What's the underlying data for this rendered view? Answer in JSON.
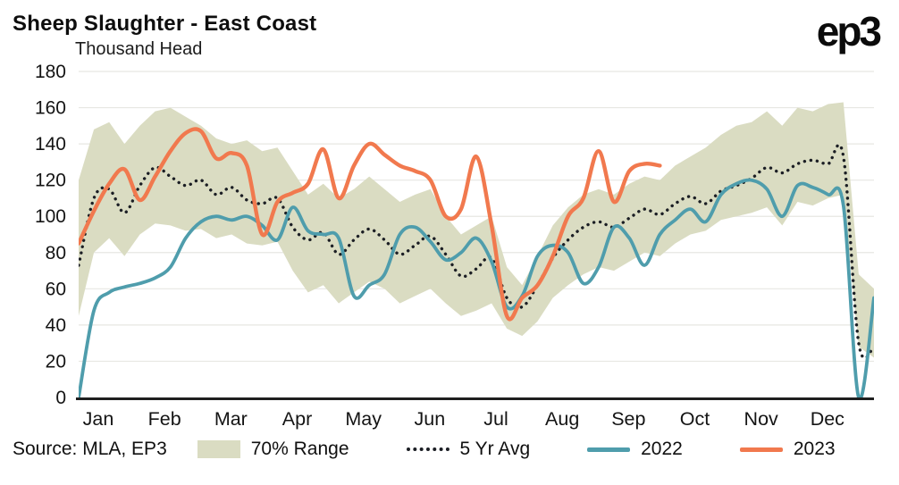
{
  "header": {
    "title": "Sheep Slaughter - East Coast",
    "subtitle": "Thousand Head",
    "logo": "ep3"
  },
  "footer": {
    "source": "Source: MLA, EP3"
  },
  "legend": [
    {
      "label": "70% Range",
      "type": "band"
    },
    {
      "label": "5 Yr Avg",
      "type": "dotted"
    },
    {
      "label": "2022",
      "type": "line"
    },
    {
      "label": "2023",
      "type": "line"
    }
  ],
  "chart_data": {
    "type": "line",
    "title": "Sheep Slaughter - East Coast",
    "ylabel": "Thousand Head",
    "ylim": [
      0,
      180
    ],
    "ytick_step": 20,
    "ytick_labels": [
      0,
      20,
      40,
      60,
      80,
      100,
      120,
      140,
      160,
      180
    ],
    "grid": true,
    "legend_position": "bottom",
    "x_unit": "weekly points, Jan through Dec",
    "x_months": [
      "Jan",
      "Feb",
      "Mar",
      "Apr",
      "May",
      "Jun",
      "Jul",
      "Aug",
      "Sep",
      "Oct",
      "Nov",
      "Dec"
    ],
    "series": [
      {
        "name": "70% Range",
        "kind": "band",
        "color": "#dadcc2",
        "high": [
          120,
          148,
          152,
          140,
          150,
          158,
          160,
          155,
          150,
          143,
          140,
          142,
          136,
          138,
          125,
          112,
          118,
          110,
          115,
          122,
          115,
          108,
          112,
          115,
          100,
          90,
          95,
          100,
          72,
          62,
          78,
          95,
          105,
          112,
          115,
          112,
          118,
          122,
          120,
          128,
          133,
          138,
          145,
          150,
          152,
          158,
          150,
          160,
          158,
          162,
          163,
          68,
          60
        ],
        "low": [
          45,
          80,
          88,
          78,
          90,
          96,
          95,
          92,
          93,
          88,
          90,
          85,
          84,
          86,
          70,
          58,
          62,
          52,
          58,
          64,
          60,
          52,
          56,
          60,
          52,
          45,
          48,
          52,
          38,
          34,
          42,
          55,
          62,
          68,
          72,
          70,
          75,
          80,
          78,
          85,
          90,
          92,
          98,
          100,
          102,
          105,
          95,
          108,
          106,
          110,
          112,
          28,
          22
        ]
      },
      {
        "name": "5 Yr Avg",
        "kind": "dotted",
        "color": "#1b1e24",
        "values": [
          73,
          110,
          115,
          102,
          117,
          127,
          122,
          117,
          120,
          112,
          116,
          109,
          107,
          110,
          94,
          87,
          91,
          79,
          87,
          93,
          87,
          79,
          84,
          89,
          79,
          67,
          71,
          77,
          55,
          50,
          62,
          77,
          87,
          94,
          97,
          94,
          99,
          104,
          101,
          107,
          111,
          107,
          114,
          117,
          121,
          127,
          124,
          129,
          131,
          129,
          133,
          30,
          28
        ]
      },
      {
        "name": "2022",
        "kind": "line",
        "color": "#4f9dac",
        "values": [
          0,
          48,
          58,
          61,
          63,
          66,
          72,
          88,
          97,
          100,
          98,
          100,
          95,
          87,
          105,
          92,
          90,
          88,
          56,
          62,
          68,
          90,
          94,
          86,
          76,
          80,
          88,
          75,
          50,
          56,
          78,
          84,
          80,
          63,
          72,
          94,
          88,
          73,
          90,
          98,
          104,
          97,
          112,
          118,
          120,
          115,
          100,
          117,
          116,
          112,
          106,
          0,
          55
        ]
      },
      {
        "name": "2023",
        "kind": "line",
        "color": "#f1794e",
        "values": [
          85,
          103,
          118,
          126,
          109,
          122,
          136,
          146,
          147,
          132,
          135,
          128,
          90,
          108,
          113,
          118,
          137,
          110,
          128,
          140,
          134,
          128,
          125,
          120,
          100,
          104,
          133,
          95,
          45,
          55,
          62,
          78,
          100,
          110,
          136,
          108,
          125,
          129,
          128
        ]
      }
    ]
  }
}
